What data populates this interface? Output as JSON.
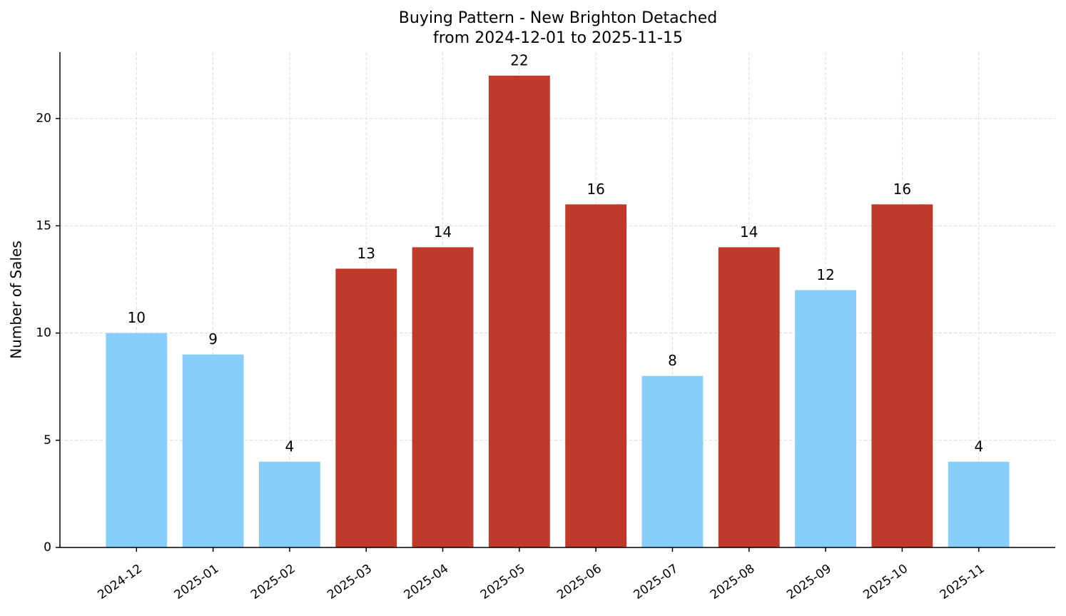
{
  "chart_data": {
    "type": "bar",
    "title": "Buying Pattern - New Brighton Detached",
    "subtitle": "from 2024-12-01 to 2025-11-15",
    "y_label": "Number of Sales",
    "categories": [
      "2024-12",
      "2025-01",
      "2025-02",
      "2025-03",
      "2025-04",
      "2025-05",
      "2025-06",
      "2025-07",
      "2025-08",
      "2025-09",
      "2025-10",
      "2025-11"
    ],
    "values": [
      10,
      9,
      4,
      13,
      14,
      22,
      16,
      8,
      14,
      12,
      16,
      4
    ],
    "colors": [
      "#87cefa",
      "#87cefa",
      "#87cefa",
      "#c0392b",
      "#c0392b",
      "#c0392b",
      "#c0392b",
      "#87cefa",
      "#c0392b",
      "#87cefa",
      "#c0392b",
      "#87cefa"
    ],
    "ylim": [
      0,
      23.1
    ],
    "yticks": [
      0,
      5,
      10,
      15,
      20
    ],
    "grid": true
  }
}
